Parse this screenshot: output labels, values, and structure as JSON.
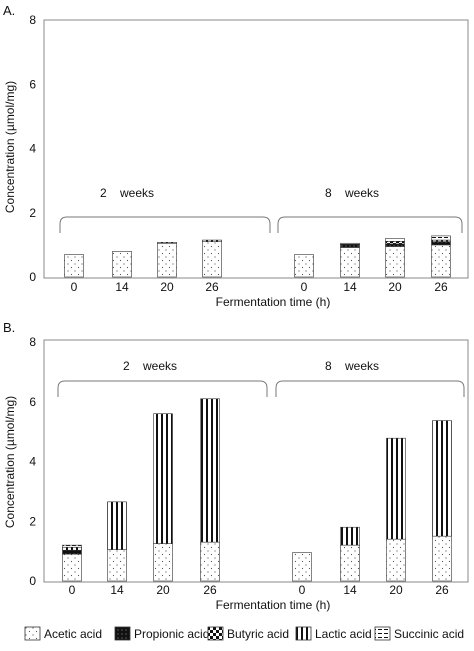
{
  "legend": [
    {
      "key": "acetic",
      "label": "Acetic acid"
    },
    {
      "key": "propionic",
      "label": "Propionic acid"
    },
    {
      "key": "butyric",
      "label": "Butyric acid"
    },
    {
      "key": "lactic",
      "label": "Lactic acid"
    },
    {
      "key": "succinic",
      "label": "Succinic acid"
    }
  ],
  "chart_data": [
    {
      "type": "bar",
      "stacked": true,
      "panel_label": "A.",
      "xlabel": "Fermentation time (h)",
      "ylabel": "Concentration (µmol/mg)",
      "ylim": [
        0,
        8
      ],
      "yticks": [
        0,
        2,
        4,
        6,
        8
      ],
      "grid": false,
      "legend_position": "bottom",
      "groups": [
        {
          "label": "2    weeks",
          "categories": [
            "0",
            "14",
            "20",
            "26"
          ],
          "series": [
            {
              "key": "acetic",
              "values": [
                0.7,
                0.8,
                1.05,
                1.1
              ]
            },
            {
              "key": "propionic",
              "values": [
                0,
                0,
                0,
                0
              ]
            },
            {
              "key": "butyric",
              "values": [
                0,
                0,
                0,
                0
              ]
            },
            {
              "key": "lactic",
              "values": [
                0,
                0,
                0.03,
                0.05
              ]
            },
            {
              "key": "succinic",
              "values": [
                0,
                0,
                0,
                0
              ]
            }
          ]
        },
        {
          "label": "8    weeks",
          "categories": [
            "0",
            "14",
            "20",
            "26"
          ],
          "series": [
            {
              "key": "acetic",
              "values": [
                0.7,
                0.92,
                0.95,
                1.0
              ]
            },
            {
              "key": "propionic",
              "values": [
                0,
                0.1,
                0.08,
                0.1
              ]
            },
            {
              "key": "butyric",
              "values": [
                0,
                0,
                0.07,
                0
              ]
            },
            {
              "key": "lactic",
              "values": [
                0,
                0,
                0,
                0.05
              ]
            },
            {
              "key": "succinic",
              "values": [
                0,
                0.03,
                0.1,
                0.13
              ]
            }
          ]
        }
      ]
    },
    {
      "type": "bar",
      "stacked": true,
      "panel_label": "B.",
      "xlabel": "Fermentation time (h)",
      "ylabel": "Concentration (µmol/mg)",
      "ylim": [
        0,
        8
      ],
      "yticks": [
        0,
        2,
        4,
        6,
        8
      ],
      "grid": false,
      "legend_position": "bottom",
      "groups": [
        {
          "label": "2    weeks",
          "categories": [
            "0",
            "14",
            "20",
            "26"
          ],
          "series": [
            {
              "key": "acetic",
              "values": [
                0.9,
                1.05,
                1.25,
                1.3
              ]
            },
            {
              "key": "propionic",
              "values": [
                0.13,
                0,
                0,
                0
              ]
            },
            {
              "key": "butyric",
              "values": [
                0,
                0,
                0,
                0
              ]
            },
            {
              "key": "lactic",
              "values": [
                0.1,
                1.6,
                4.35,
                4.8
              ]
            },
            {
              "key": "succinic",
              "values": [
                0.07,
                0,
                0,
                0
              ]
            }
          ]
        },
        {
          "label": "8    weeks",
          "categories": [
            "0",
            "14",
            "20",
            "26"
          ],
          "series": [
            {
              "key": "acetic",
              "values": [
                0.95,
                1.2,
                1.4,
                1.5
              ]
            },
            {
              "key": "propionic",
              "values": [
                0,
                0,
                0,
                0
              ]
            },
            {
              "key": "butyric",
              "values": [
                0,
                0,
                0,
                0
              ]
            },
            {
              "key": "lactic",
              "values": [
                0,
                0.6,
                3.38,
                3.87
              ]
            },
            {
              "key": "succinic",
              "values": [
                0,
                0,
                0,
                0
              ]
            }
          ]
        }
      ]
    }
  ]
}
